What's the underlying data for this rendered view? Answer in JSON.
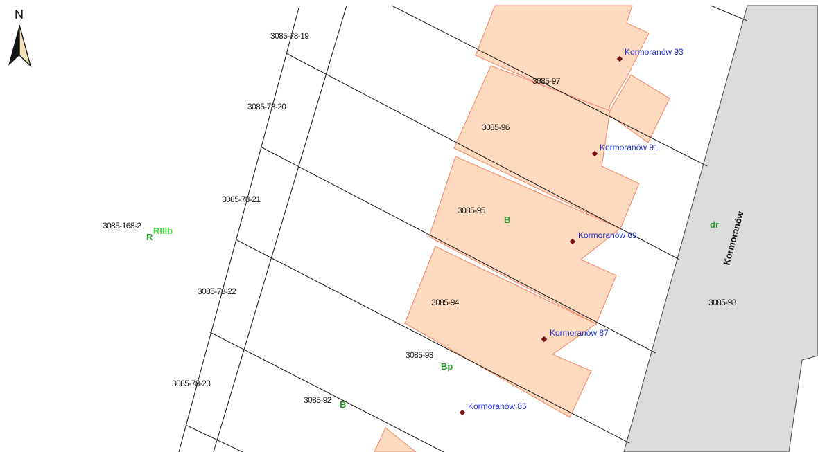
{
  "north_arrow": {
    "label": "N",
    "icon": "north-arrow-icon"
  },
  "street": {
    "name": "Kormoranów",
    "color": "#dcdcdc"
  },
  "colors": {
    "building_fill": "#fdd9bd",
    "building_stroke": "#f08c6a",
    "parcel_line": "#222222",
    "address_text": "#1e32d6",
    "address_point": "#7a1414",
    "land_use_text": "#2a9a2a",
    "soil_class_text": "#3ee23e"
  },
  "parcels": [
    {
      "id": "3085-78-19"
    },
    {
      "id": "3085-78-20"
    },
    {
      "id": "3085-78-21"
    },
    {
      "id": "3085-78-22"
    },
    {
      "id": "3085-78-23"
    },
    {
      "id": "3085-168-2"
    },
    {
      "id": "3085-97"
    },
    {
      "id": "3085-96"
    },
    {
      "id": "3085-95"
    },
    {
      "id": "3085-94"
    },
    {
      "id": "3085-93"
    },
    {
      "id": "3085-92"
    },
    {
      "id": "3085-98"
    }
  ],
  "addresses": [
    {
      "label": "Kormoranów 93"
    },
    {
      "label": "Kormoranów 91"
    },
    {
      "label": "Kormoranów 89"
    },
    {
      "label": "Kormoranów 87"
    },
    {
      "label": "Kormoranów 85"
    }
  ],
  "land_use_labels": [
    {
      "code": "B"
    },
    {
      "code": "Bp"
    },
    {
      "code": "B"
    },
    {
      "code": "dr"
    },
    {
      "code": "R"
    }
  ],
  "soil_class_labels": [
    {
      "code": "RIIIb"
    }
  ]
}
